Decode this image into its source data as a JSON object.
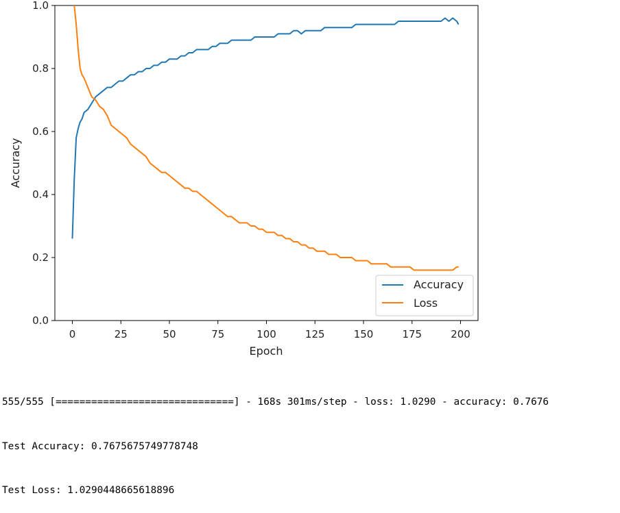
{
  "chart_data": {
    "type": "line",
    "xlabel": "Epoch",
    "ylabel": "Accuracy",
    "xlim": [
      -9,
      209
    ],
    "ylim": [
      0.0,
      1.0
    ],
    "xticks": [
      0,
      25,
      50,
      75,
      100,
      125,
      150,
      175,
      200
    ],
    "yticks": [
      0.0,
      0.2,
      0.4,
      0.6,
      0.8,
      1.0
    ],
    "xtick_labels": [
      "0",
      "25",
      "50",
      "75",
      "100",
      "125",
      "150",
      "175",
      "200"
    ],
    "ytick_labels": [
      "0.0",
      "0.2",
      "0.4",
      "0.6",
      "0.8",
      "1.0"
    ],
    "grid": false,
    "legend_placement": "lower-right",
    "series": [
      {
        "name": "Accuracy",
        "color": "#1f77b4",
        "x": [
          0,
          1,
          2,
          3,
          4,
          5,
          6,
          8,
          10,
          12,
          14,
          16,
          18,
          20,
          22,
          24,
          26,
          28,
          30,
          32,
          34,
          36,
          38,
          40,
          42,
          44,
          46,
          48,
          50,
          52,
          54,
          56,
          58,
          60,
          62,
          64,
          66,
          68,
          70,
          72,
          74,
          76,
          78,
          80,
          82,
          84,
          86,
          88,
          90,
          92,
          94,
          96,
          98,
          100,
          102,
          104,
          106,
          108,
          110,
          112,
          114,
          116,
          118,
          120,
          122,
          124,
          126,
          128,
          130,
          132,
          134,
          136,
          138,
          140,
          142,
          144,
          146,
          148,
          150,
          152,
          154,
          156,
          158,
          160,
          162,
          164,
          166,
          168,
          170,
          172,
          174,
          176,
          178,
          180,
          182,
          184,
          186,
          188,
          190,
          192,
          194,
          196,
          198,
          199
        ],
        "y": [
          0.26,
          0.45,
          0.58,
          0.61,
          0.63,
          0.64,
          0.66,
          0.67,
          0.69,
          0.71,
          0.72,
          0.73,
          0.74,
          0.74,
          0.75,
          0.76,
          0.76,
          0.77,
          0.78,
          0.78,
          0.79,
          0.79,
          0.8,
          0.8,
          0.81,
          0.81,
          0.82,
          0.82,
          0.83,
          0.83,
          0.83,
          0.84,
          0.84,
          0.85,
          0.85,
          0.86,
          0.86,
          0.86,
          0.86,
          0.87,
          0.87,
          0.88,
          0.88,
          0.88,
          0.89,
          0.89,
          0.89,
          0.89,
          0.89,
          0.89,
          0.9,
          0.9,
          0.9,
          0.9,
          0.9,
          0.9,
          0.91,
          0.91,
          0.91,
          0.91,
          0.92,
          0.92,
          0.91,
          0.92,
          0.92,
          0.92,
          0.92,
          0.92,
          0.93,
          0.93,
          0.93,
          0.93,
          0.93,
          0.93,
          0.93,
          0.93,
          0.94,
          0.94,
          0.94,
          0.94,
          0.94,
          0.94,
          0.94,
          0.94,
          0.94,
          0.94,
          0.94,
          0.95,
          0.95,
          0.95,
          0.95,
          0.95,
          0.95,
          0.95,
          0.95,
          0.95,
          0.95,
          0.95,
          0.95,
          0.96,
          0.95,
          0.96,
          0.95,
          0.94
        ]
      },
      {
        "name": "Loss",
        "color": "#ff7f0e",
        "x": [
          1,
          2,
          3,
          4,
          5,
          6,
          8,
          10,
          12,
          14,
          16,
          18,
          20,
          22,
          24,
          26,
          28,
          30,
          32,
          34,
          36,
          38,
          40,
          42,
          44,
          46,
          48,
          50,
          52,
          54,
          56,
          58,
          60,
          62,
          64,
          66,
          68,
          70,
          72,
          74,
          76,
          78,
          80,
          82,
          84,
          86,
          88,
          90,
          92,
          94,
          96,
          98,
          100,
          102,
          104,
          106,
          108,
          110,
          112,
          114,
          116,
          118,
          120,
          122,
          124,
          126,
          128,
          130,
          132,
          134,
          136,
          138,
          140,
          142,
          144,
          146,
          148,
          150,
          152,
          154,
          156,
          158,
          160,
          162,
          164,
          166,
          168,
          170,
          172,
          174,
          176,
          178,
          180,
          182,
          184,
          186,
          188,
          190,
          192,
          194,
          196,
          198,
          199
        ],
        "y": [
          1.0,
          0.94,
          0.86,
          0.8,
          0.78,
          0.77,
          0.74,
          0.71,
          0.7,
          0.68,
          0.67,
          0.65,
          0.62,
          0.61,
          0.6,
          0.59,
          0.58,
          0.56,
          0.55,
          0.54,
          0.53,
          0.52,
          0.5,
          0.49,
          0.48,
          0.47,
          0.47,
          0.46,
          0.45,
          0.44,
          0.43,
          0.42,
          0.42,
          0.41,
          0.41,
          0.4,
          0.39,
          0.38,
          0.37,
          0.36,
          0.35,
          0.34,
          0.33,
          0.33,
          0.32,
          0.31,
          0.31,
          0.31,
          0.3,
          0.3,
          0.29,
          0.29,
          0.28,
          0.28,
          0.28,
          0.27,
          0.27,
          0.26,
          0.26,
          0.25,
          0.25,
          0.24,
          0.24,
          0.23,
          0.23,
          0.22,
          0.22,
          0.22,
          0.21,
          0.21,
          0.21,
          0.2,
          0.2,
          0.2,
          0.2,
          0.19,
          0.19,
          0.19,
          0.19,
          0.18,
          0.18,
          0.18,
          0.18,
          0.18,
          0.17,
          0.17,
          0.17,
          0.17,
          0.17,
          0.17,
          0.16,
          0.16,
          0.16,
          0.16,
          0.16,
          0.16,
          0.16,
          0.16,
          0.16,
          0.16,
          0.16,
          0.17,
          0.17
        ]
      }
    ]
  },
  "console": {
    "line1": "555/555 [==============================] - 168s 301ms/step - loss: 1.0290 - accuracy: 0.7676",
    "line2": "Test Accuracy: 0.7675675749778748",
    "line3": "Test Loss: 1.0290448665618896"
  }
}
